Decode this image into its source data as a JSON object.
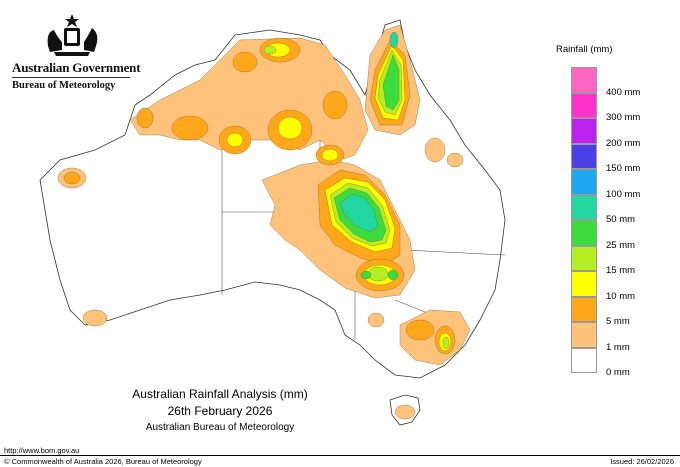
{
  "header": {
    "government": "Australian Government",
    "bureau": "Bureau of Meteorology"
  },
  "title": {
    "line1": "Australian Rainfall Analysis (mm)",
    "line2": "26th February 2026",
    "line3": "Australian Bureau of Meteorology"
  },
  "legend": {
    "title": "Rainfall (mm)",
    "bins": [
      {
        "label": "",
        "color": "#ff66c4"
      },
      {
        "label": "400 mm",
        "color": "#ff33cc"
      },
      {
        "label": "300 mm",
        "color": "#bb22ee"
      },
      {
        "label": "200 mm",
        "color": "#4b3fe8"
      },
      {
        "label": "150 mm",
        "color": "#1ca9ef"
      },
      {
        "label": "100 mm",
        "color": "#22d8a0"
      },
      {
        "label": "50 mm",
        "color": "#3ddc3d"
      },
      {
        "label": "25 mm",
        "color": "#b3ef22"
      },
      {
        "label": "15 mm",
        "color": "#ffff00"
      },
      {
        "label": "10 mm",
        "color": "#ffa71a"
      },
      {
        "label": "5 mm",
        "color": "#ffc27a"
      },
      {
        "label": "1 mm",
        "color": "#ffffff"
      },
      {
        "label": "0 mm",
        "color": ""
      }
    ]
  },
  "footer": {
    "url": "http://www.bom.gov.au",
    "copyright": "© Commonwealth of Australia 2026, Bureau of Meteorology",
    "issued": "Issued: 26/02/2026"
  },
  "map": {
    "colors": {
      "land": "#ffffff",
      "coast": "#333333",
      "border": "#555555",
      "rain_1mm": "#ffc27a",
      "rain_5mm": "#ffa71a",
      "rain_10mm": "#ffff00",
      "rain_15mm": "#b3ef22",
      "rain_25mm": "#3ddc3d",
      "rain_50mm": "#22d8a0",
      "contour": "#8a6a3a"
    }
  }
}
